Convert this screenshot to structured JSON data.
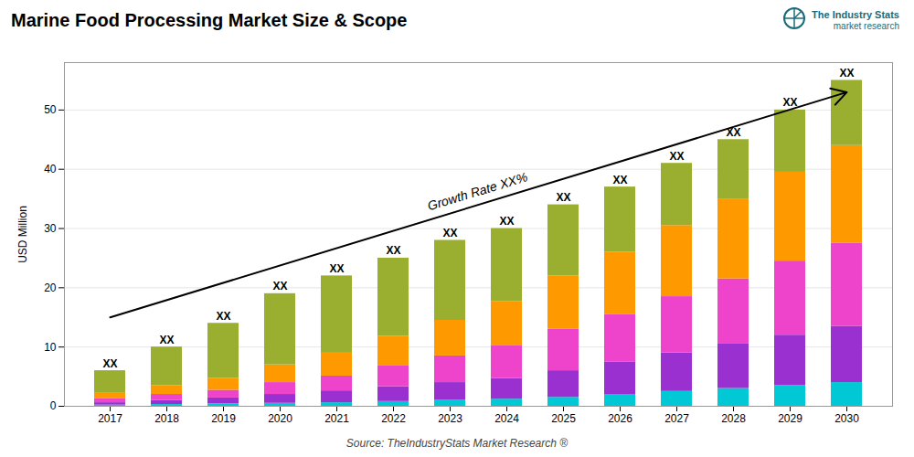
{
  "chart_data": {
    "type": "bar",
    "stacked": true,
    "title": "Marine Food Processing Market Size & Scope",
    "ylabel": "USD Million",
    "source": "Source: TheIndustryStats Market Research ®",
    "logo": [
      "The Industry Stats",
      "market research"
    ],
    "logo_color": "#1a6b7a",
    "background_color": "#ffffff",
    "categories": [
      2017,
      2018,
      2019,
      2020,
      2021,
      2022,
      2023,
      2024,
      2025,
      2026,
      2027,
      2028,
      2029,
      2030
    ],
    "series": [
      {
        "color": "#00c8d4",
        "values": [
          0.2,
          0.3,
          0.4,
          0.5,
          0.6,
          0.8,
          1.0,
          1.2,
          1.5,
          2.0,
          2.5,
          3.0,
          3.5,
          4.0
        ]
      },
      {
        "color": "#9b30d0",
        "values": [
          0.4,
          0.7,
          1.0,
          1.5,
          2.0,
          2.5,
          3.0,
          3.5,
          4.5,
          5.5,
          6.5,
          7.5,
          8.5,
          9.5
        ]
      },
      {
        "color": "#ee44cc",
        "values": [
          0.7,
          1.0,
          1.3,
          2.0,
          2.5,
          3.5,
          4.5,
          5.5,
          7.0,
          8.0,
          9.5,
          11.0,
          12.5,
          14.0
        ]
      },
      {
        "color": "#ff9900",
        "values": [
          1.0,
          1.5,
          2.0,
          3.0,
          4.0,
          5.0,
          6.0,
          7.5,
          9.0,
          10.5,
          12.0,
          13.5,
          15.0,
          16.5
        ]
      },
      {
        "color": "#9aaf30",
        "values": [
          3.7,
          6.5,
          9.3,
          12.0,
          12.9,
          13.2,
          13.5,
          12.3,
          12.0,
          11.0,
          10.5,
          10.0,
          10.5,
          11.0
        ]
      }
    ],
    "total_labels": [
      "XX",
      "XX",
      "XX",
      "XX",
      "XX",
      "XX",
      "XX",
      "XX",
      "XX",
      "XX",
      "XX",
      "XX",
      "XX",
      "XX"
    ],
    "annotations": [
      {
        "text": "Growth Rate XX%",
        "arrow_y": [
          15,
          53
        ]
      }
    ],
    "ylim": [
      0,
      58
    ],
    "yticks": [
      0,
      10,
      20,
      30,
      40,
      50
    ],
    "grid": true
  }
}
